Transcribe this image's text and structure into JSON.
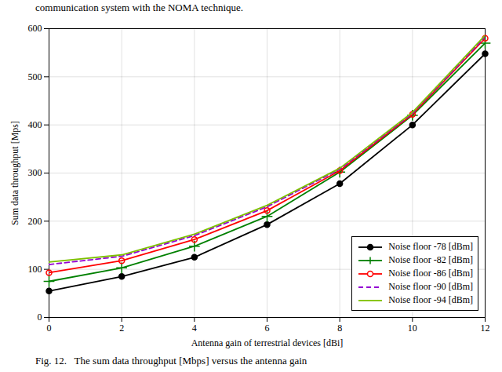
{
  "chart_data": {
    "type": "line",
    "annotations": [
      "communication system with the NOMA technique.",
      "Fig. 12.   The sum data throughput [Mbps] versus the antenna gain"
    ],
    "xlabel": "Antenna gain of terrestrial devices [dBi]",
    "ylabel": "Sum data throughput [Mps]",
    "x": [
      0,
      2,
      4,
      6,
      8,
      10,
      12
    ],
    "series": [
      {
        "name": "Noise floor -78 [dBm]",
        "color": "#000000",
        "line_style": "solid",
        "marker": "circle",
        "values": [
          55,
          85,
          125,
          193,
          278,
          400,
          548
        ]
      },
      {
        "name": "Noise floor -82 [dBm]",
        "color": "#008000",
        "line_style": "solid",
        "marker": "plus",
        "values": [
          75,
          103,
          148,
          210,
          302,
          420,
          570
        ]
      },
      {
        "name": "Noise floor -86 [dBm]",
        "color": "#ff0000",
        "line_style": "solid",
        "marker": "ring",
        "values": [
          93,
          118,
          162,
          222,
          305,
          422,
          580
        ]
      },
      {
        "name": "Noise floor -90 [dBm]",
        "color": "#9400d3",
        "line_style": "dashed",
        "marker": "none",
        "values": [
          110,
          127,
          170,
          230,
          308,
          424,
          583
        ]
      },
      {
        "name": "Noise floor -94 [dBm]",
        "color": "#7dc000",
        "line_style": "solid",
        "marker": "none",
        "values": [
          115,
          130,
          173,
          233,
          310,
          426,
          586
        ]
      }
    ],
    "xlim": [
      0,
      12
    ],
    "ylim": [
      0,
      600
    ],
    "xticks": [
      0,
      2,
      4,
      6,
      8,
      10,
      12
    ],
    "yticks": [
      0,
      100,
      200,
      300,
      400,
      500,
      600
    ],
    "grid": true,
    "legend": "lower right"
  }
}
